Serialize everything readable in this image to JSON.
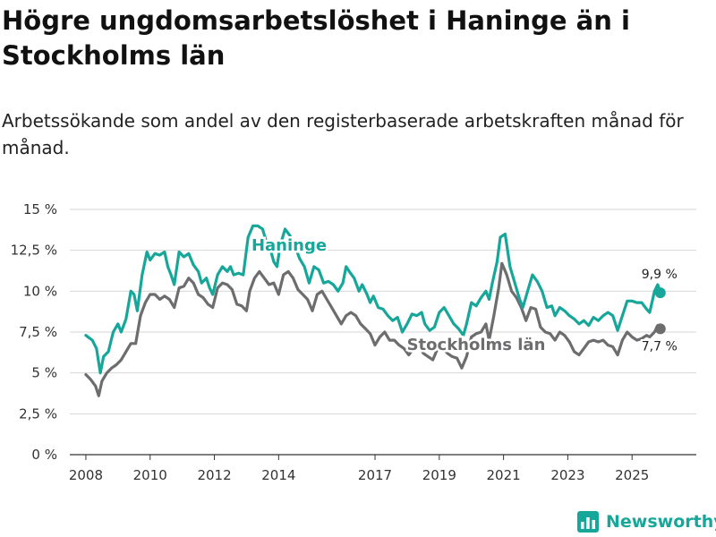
{
  "title": "Högre ungdomsarbetslöshet i Haninge än i Stockholms län",
  "subtitle": "Arbetssökande som andel av den registerbaserade arbetskraften månad för månad.",
  "brand": "Newsworthy",
  "colors": {
    "haninge": "#17a79a",
    "stockholm": "#6d6d70",
    "grid": "#d6d6d6",
    "axis": "#333333"
  },
  "chart_data": {
    "type": "line",
    "title": "Högre ungdomsarbetslöshet i Haninge än i Stockholms län",
    "xlabel": "",
    "ylabel": "",
    "xlim": [
      2007.5,
      2027.0
    ],
    "ylim": [
      0,
      15
    ],
    "yticks": [
      0,
      2.5,
      5,
      7.5,
      10,
      12.5,
      15
    ],
    "ytick_labels": [
      "0 %",
      "2,5 %",
      "5 %",
      "7,5 %",
      "10 %",
      "12,5 %",
      "15 %"
    ],
    "xticks": [
      2008,
      2010,
      2012,
      2014,
      2017,
      2019,
      2021,
      2023,
      2025
    ],
    "xtick_labels": [
      "2008",
      "2010",
      "2012",
      "2014",
      "2017",
      "2019",
      "2021",
      "2023",
      "2025"
    ],
    "grid": true,
    "series": [
      {
        "name": "Haninge",
        "label": "Haninge",
        "end_label": "9,9 %",
        "color": "#17a79a",
        "points": [
          [
            2008.0,
            7.3
          ],
          [
            2008.2,
            7.0
          ],
          [
            2008.33,
            6.5
          ],
          [
            2008.45,
            5.0
          ],
          [
            2008.55,
            6.0
          ],
          [
            2008.7,
            6.3
          ],
          [
            2008.85,
            7.5
          ],
          [
            2009.0,
            8.0
          ],
          [
            2009.1,
            7.5
          ],
          [
            2009.25,
            8.3
          ],
          [
            2009.4,
            10.0
          ],
          [
            2009.5,
            9.8
          ],
          [
            2009.6,
            8.8
          ],
          [
            2009.75,
            11.0
          ],
          [
            2009.9,
            12.4
          ],
          [
            2010.0,
            11.9
          ],
          [
            2010.15,
            12.3
          ],
          [
            2010.3,
            12.2
          ],
          [
            2010.45,
            12.4
          ],
          [
            2010.55,
            11.5
          ],
          [
            2010.65,
            11.0
          ],
          [
            2010.75,
            10.4
          ],
          [
            2010.9,
            12.4
          ],
          [
            2011.05,
            12.1
          ],
          [
            2011.2,
            12.3
          ],
          [
            2011.35,
            11.6
          ],
          [
            2011.5,
            11.2
          ],
          [
            2011.6,
            10.5
          ],
          [
            2011.75,
            10.8
          ],
          [
            2011.85,
            10.2
          ],
          [
            2011.95,
            9.8
          ],
          [
            2012.1,
            11.0
          ],
          [
            2012.25,
            11.5
          ],
          [
            2012.4,
            11.2
          ],
          [
            2012.5,
            11.5
          ],
          [
            2012.6,
            11.0
          ],
          [
            2012.75,
            11.1
          ],
          [
            2012.9,
            11.0
          ],
          [
            2013.05,
            13.3
          ],
          [
            2013.2,
            14.0
          ],
          [
            2013.35,
            14.0
          ],
          [
            2013.5,
            13.8
          ],
          [
            2013.65,
            12.8
          ],
          [
            2013.75,
            12.5
          ],
          [
            2013.85,
            11.8
          ],
          [
            2013.95,
            11.5
          ],
          [
            2014.05,
            12.8
          ],
          [
            2014.2,
            13.8
          ],
          [
            2014.35,
            13.4
          ],
          [
            2014.5,
            12.8
          ],
          [
            2014.65,
            12.0
          ],
          [
            2014.8,
            11.5
          ],
          [
            2014.95,
            10.5
          ],
          [
            2015.1,
            11.5
          ],
          [
            2015.25,
            11.3
          ],
          [
            2015.4,
            10.5
          ],
          [
            2015.55,
            10.6
          ],
          [
            2015.7,
            10.4
          ],
          [
            2015.85,
            10.0
          ],
          [
            2016.0,
            10.5
          ],
          [
            2016.1,
            11.5
          ],
          [
            2016.2,
            11.2
          ],
          [
            2016.35,
            10.8
          ],
          [
            2016.5,
            10.0
          ],
          [
            2016.6,
            10.4
          ],
          [
            2016.75,
            9.8
          ],
          [
            2016.85,
            9.3
          ],
          [
            2016.95,
            9.7
          ],
          [
            2017.1,
            9.0
          ],
          [
            2017.25,
            8.9
          ],
          [
            2017.4,
            8.5
          ],
          [
            2017.55,
            8.2
          ],
          [
            2017.7,
            8.4
          ],
          [
            2017.85,
            7.5
          ],
          [
            2018.0,
            8.0
          ],
          [
            2018.15,
            8.6
          ],
          [
            2018.3,
            8.5
          ],
          [
            2018.45,
            8.7
          ],
          [
            2018.55,
            8.0
          ],
          [
            2018.7,
            7.6
          ],
          [
            2018.85,
            7.8
          ],
          [
            2019.0,
            8.7
          ],
          [
            2019.15,
            9.0
          ],
          [
            2019.3,
            8.5
          ],
          [
            2019.45,
            8.0
          ],
          [
            2019.6,
            7.7
          ],
          [
            2019.75,
            7.3
          ],
          [
            2019.85,
            8.0
          ],
          [
            2020.0,
            9.3
          ],
          [
            2020.15,
            9.1
          ],
          [
            2020.3,
            9.6
          ],
          [
            2020.45,
            10.0
          ],
          [
            2020.55,
            9.5
          ],
          [
            2020.65,
            10.5
          ],
          [
            2020.8,
            11.8
          ],
          [
            2020.9,
            13.3
          ],
          [
            2021.05,
            13.5
          ],
          [
            2021.2,
            11.5
          ],
          [
            2021.35,
            10.5
          ],
          [
            2021.5,
            9.5
          ],
          [
            2021.6,
            9.0
          ],
          [
            2021.75,
            10.0
          ],
          [
            2021.9,
            11.0
          ],
          [
            2022.05,
            10.6
          ],
          [
            2022.2,
            10.0
          ],
          [
            2022.35,
            9.0
          ],
          [
            2022.5,
            9.1
          ],
          [
            2022.6,
            8.5
          ],
          [
            2022.75,
            9.0
          ],
          [
            2022.9,
            8.8
          ],
          [
            2023.05,
            8.5
          ],
          [
            2023.2,
            8.3
          ],
          [
            2023.35,
            8.0
          ],
          [
            2023.5,
            8.2
          ],
          [
            2023.65,
            7.9
          ],
          [
            2023.8,
            8.4
          ],
          [
            2023.95,
            8.2
          ],
          [
            2024.1,
            8.5
          ],
          [
            2024.25,
            8.7
          ],
          [
            2024.4,
            8.5
          ],
          [
            2024.55,
            7.6
          ],
          [
            2024.7,
            8.5
          ],
          [
            2024.85,
            9.4
          ],
          [
            2025.0,
            9.4
          ],
          [
            2025.15,
            9.3
          ],
          [
            2025.3,
            9.3
          ],
          [
            2025.45,
            8.9
          ],
          [
            2025.55,
            8.7
          ],
          [
            2025.7,
            10.0
          ],
          [
            2025.8,
            10.4
          ],
          [
            2025.88,
            9.9
          ]
        ]
      },
      {
        "name": "Stockholms län",
        "label": "Stockholms län",
        "end_label": "7,7 %",
        "color": "#6d6d70",
        "points": [
          [
            2008.0,
            4.9
          ],
          [
            2008.15,
            4.6
          ],
          [
            2008.3,
            4.2
          ],
          [
            2008.4,
            3.6
          ],
          [
            2008.5,
            4.5
          ],
          [
            2008.65,
            5.0
          ],
          [
            2008.8,
            5.3
          ],
          [
            2008.95,
            5.5
          ],
          [
            2009.1,
            5.8
          ],
          [
            2009.25,
            6.3
          ],
          [
            2009.4,
            6.8
          ],
          [
            2009.55,
            6.8
          ],
          [
            2009.7,
            8.5
          ],
          [
            2009.85,
            9.3
          ],
          [
            2010.0,
            9.8
          ],
          [
            2010.15,
            9.8
          ],
          [
            2010.3,
            9.5
          ],
          [
            2010.45,
            9.7
          ],
          [
            2010.6,
            9.5
          ],
          [
            2010.75,
            9.0
          ],
          [
            2010.9,
            10.2
          ],
          [
            2011.05,
            10.3
          ],
          [
            2011.2,
            10.8
          ],
          [
            2011.35,
            10.5
          ],
          [
            2011.5,
            9.8
          ],
          [
            2011.65,
            9.6
          ],
          [
            2011.8,
            9.2
          ],
          [
            2011.95,
            9.0
          ],
          [
            2012.1,
            10.2
          ],
          [
            2012.25,
            10.5
          ],
          [
            2012.4,
            10.4
          ],
          [
            2012.55,
            10.1
          ],
          [
            2012.7,
            9.2
          ],
          [
            2012.85,
            9.1
          ],
          [
            2013.0,
            8.8
          ],
          [
            2013.1,
            10.0
          ],
          [
            2013.25,
            10.8
          ],
          [
            2013.4,
            11.2
          ],
          [
            2013.55,
            10.8
          ],
          [
            2013.7,
            10.4
          ],
          [
            2013.85,
            10.5
          ],
          [
            2014.0,
            9.8
          ],
          [
            2014.15,
            11.0
          ],
          [
            2014.3,
            11.2
          ],
          [
            2014.45,
            10.8
          ],
          [
            2014.6,
            10.1
          ],
          [
            2014.75,
            9.8
          ],
          [
            2014.9,
            9.5
          ],
          [
            2015.05,
            8.8
          ],
          [
            2015.2,
            9.8
          ],
          [
            2015.35,
            10.0
          ],
          [
            2015.5,
            9.5
          ],
          [
            2015.65,
            9.0
          ],
          [
            2015.8,
            8.5
          ],
          [
            2015.95,
            8.0
          ],
          [
            2016.1,
            8.5
          ],
          [
            2016.25,
            8.7
          ],
          [
            2016.4,
            8.5
          ],
          [
            2016.55,
            8.0
          ],
          [
            2016.7,
            7.7
          ],
          [
            2016.85,
            7.4
          ],
          [
            2017.0,
            6.7
          ],
          [
            2017.15,
            7.2
          ],
          [
            2017.3,
            7.5
          ],
          [
            2017.45,
            7.0
          ],
          [
            2017.6,
            7.0
          ],
          [
            2017.75,
            6.7
          ],
          [
            2017.9,
            6.5
          ],
          [
            2018.05,
            6.1
          ],
          [
            2018.2,
            6.5
          ],
          [
            2018.35,
            6.8
          ],
          [
            2018.5,
            6.2
          ],
          [
            2018.65,
            6.0
          ],
          [
            2018.8,
            5.8
          ],
          [
            2018.95,
            6.5
          ],
          [
            2019.1,
            6.6
          ],
          [
            2019.25,
            6.2
          ],
          [
            2019.4,
            6.0
          ],
          [
            2019.55,
            5.9
          ],
          [
            2019.7,
            5.3
          ],
          [
            2019.85,
            6.0
          ],
          [
            2020.0,
            7.2
          ],
          [
            2020.15,
            7.4
          ],
          [
            2020.3,
            7.5
          ],
          [
            2020.45,
            8.0
          ],
          [
            2020.55,
            7.0
          ],
          [
            2020.7,
            8.5
          ],
          [
            2020.85,
            10.2
          ],
          [
            2020.95,
            11.7
          ],
          [
            2021.1,
            11.0
          ],
          [
            2021.25,
            10.0
          ],
          [
            2021.4,
            9.6
          ],
          [
            2021.55,
            9.0
          ],
          [
            2021.7,
            8.2
          ],
          [
            2021.85,
            9.0
          ],
          [
            2022.0,
            8.9
          ],
          [
            2022.15,
            7.8
          ],
          [
            2022.3,
            7.5
          ],
          [
            2022.45,
            7.4
          ],
          [
            2022.6,
            7.0
          ],
          [
            2022.75,
            7.5
          ],
          [
            2022.9,
            7.3
          ],
          [
            2023.05,
            6.9
          ],
          [
            2023.2,
            6.3
          ],
          [
            2023.35,
            6.1
          ],
          [
            2023.5,
            6.5
          ],
          [
            2023.65,
            6.9
          ],
          [
            2023.8,
            7.0
          ],
          [
            2023.95,
            6.9
          ],
          [
            2024.1,
            7.0
          ],
          [
            2024.25,
            6.7
          ],
          [
            2024.4,
            6.6
          ],
          [
            2024.55,
            6.1
          ],
          [
            2024.7,
            7.0
          ],
          [
            2024.85,
            7.5
          ],
          [
            2025.0,
            7.2
          ],
          [
            2025.15,
            7.0
          ],
          [
            2025.3,
            7.1
          ],
          [
            2025.45,
            7.3
          ],
          [
            2025.55,
            7.2
          ],
          [
            2025.7,
            7.5
          ],
          [
            2025.8,
            7.9
          ],
          [
            2025.88,
            7.7
          ]
        ]
      }
    ]
  }
}
